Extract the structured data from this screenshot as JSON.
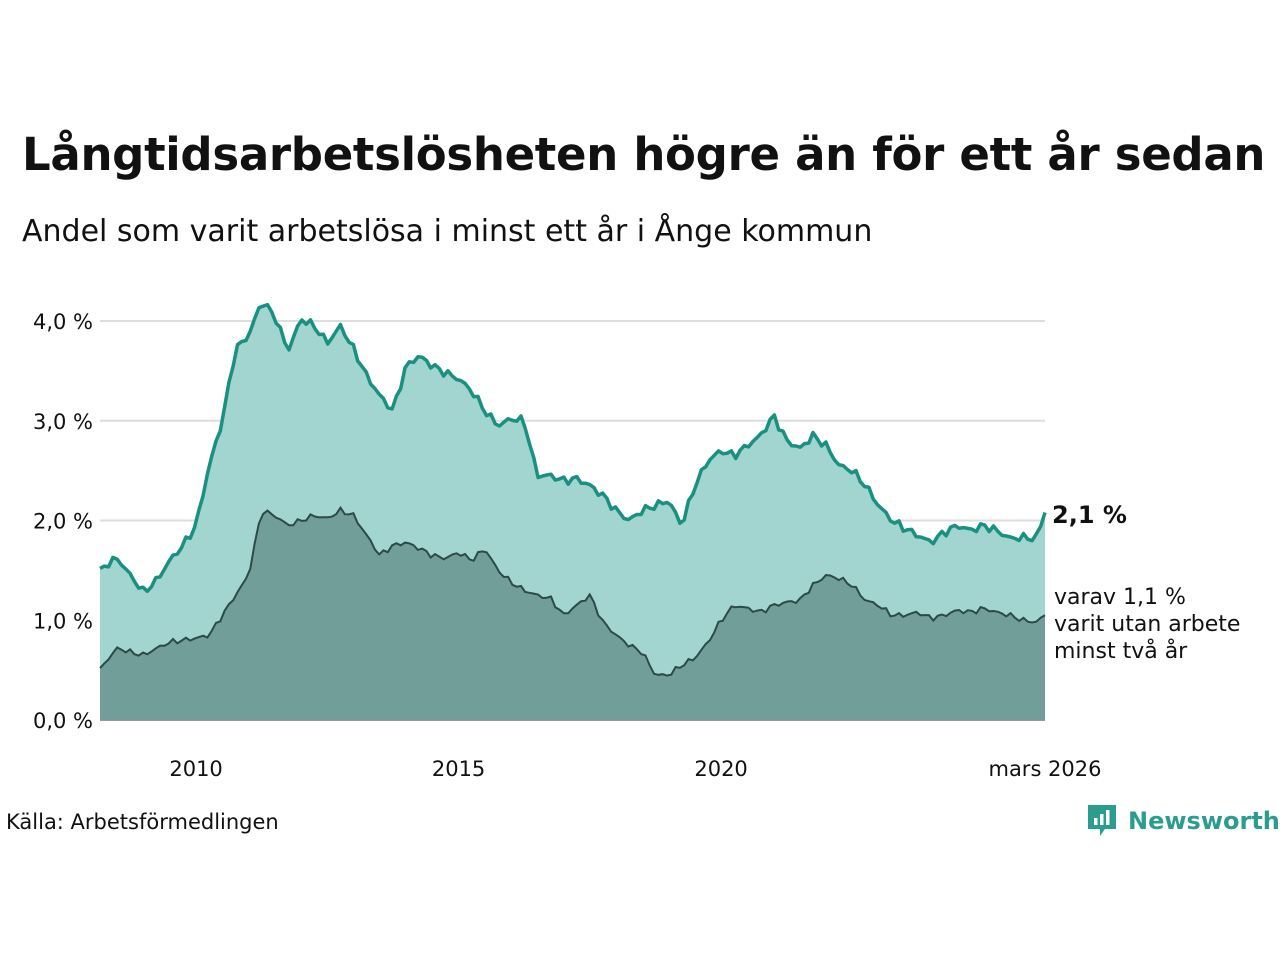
{
  "title": "Långtidsarbetslösheten högre än för ett år sedan",
  "subtitle": "Andel som varit arbetslösa i minst ett år i Ånge kommun",
  "source": "Källa: Arbetsförmedlingen",
  "brand": "Newsworthy",
  "colors": {
    "line1": "#1a9080",
    "area1": "#a3d5d0",
    "line2": "#2c4a47",
    "area2": "#719e99",
    "grid": "#dddddd"
  },
  "chart_data": {
    "type": "area",
    "title": "Långtidsarbetslösheten högre än för ett år sedan",
    "xlabel": "",
    "ylabel": "",
    "xlim": [
      2008.17,
      2026.17
    ],
    "ylim": [
      0,
      4.0
    ],
    "y_ticks": [
      0,
      1,
      2,
      3,
      4
    ],
    "y_tick_labels": [
      "0,0 %",
      "1,0 %",
      "2,0 %",
      "3,0 %",
      "4,0 %"
    ],
    "x_ticks": [
      2010,
      2015,
      2020,
      2026.17
    ],
    "x_tick_labels": [
      "2010",
      "2015",
      "2020",
      "mars 2026"
    ],
    "end_label": "2,1 %",
    "sub_label_lines": [
      "varav 1,1 %",
      "varit utan arbete",
      "minst två år"
    ],
    "series": [
      {
        "name": "Minst ett år",
        "x": [
          2008.17,
          2008.5,
          2008.75,
          2009.0,
          2009.25,
          2009.5,
          2009.75,
          2010.0,
          2010.25,
          2010.5,
          2010.75,
          2011.0,
          2011.25,
          2011.5,
          2011.75,
          2012.0,
          2012.25,
          2012.5,
          2012.75,
          2013.0,
          2013.25,
          2013.5,
          2013.75,
          2014.0,
          2014.25,
          2014.5,
          2014.75,
          2015.0,
          2015.25,
          2015.5,
          2015.75,
          2016.0,
          2016.25,
          2016.5,
          2016.75,
          2017.0,
          2017.25,
          2017.5,
          2017.75,
          2018.0,
          2018.25,
          2018.5,
          2018.75,
          2019.0,
          2019.25,
          2019.5,
          2019.75,
          2020.0,
          2020.25,
          2020.5,
          2020.75,
          2021.0,
          2021.25,
          2021.5,
          2021.75,
          2022.0,
          2022.25,
          2022.5,
          2022.75,
          2023.0,
          2023.25,
          2023.5,
          2023.75,
          2024.0,
          2024.25,
          2024.5,
          2024.75,
          2025.0,
          2025.25,
          2025.5,
          2025.75,
          2026.0,
          2026.17
        ],
        "values": [
          1.52,
          1.62,
          1.45,
          1.28,
          1.4,
          1.6,
          1.75,
          1.95,
          2.55,
          3.0,
          3.72,
          3.85,
          4.2,
          4.05,
          3.7,
          4.02,
          3.95,
          3.78,
          3.95,
          3.72,
          3.45,
          3.25,
          3.1,
          3.55,
          3.65,
          3.55,
          3.48,
          3.42,
          3.3,
          3.1,
          2.95,
          3.02,
          3.0,
          2.45,
          2.45,
          2.4,
          2.42,
          2.35,
          2.25,
          2.1,
          2.0,
          2.1,
          2.15,
          2.2,
          1.95,
          2.35,
          2.6,
          2.7,
          2.65,
          2.75,
          2.85,
          3.05,
          2.8,
          2.72,
          2.85,
          2.75,
          2.55,
          2.5,
          2.35,
          2.15,
          2.0,
          1.92,
          1.85,
          1.78,
          1.88,
          1.95,
          1.9,
          1.95,
          1.9,
          1.82,
          1.83,
          1.82,
          2.08
        ]
      },
      {
        "name": "Minst två år",
        "x": [
          2008.17,
          2008.5,
          2008.75,
          2009.0,
          2009.25,
          2009.5,
          2009.75,
          2010.0,
          2010.25,
          2010.5,
          2010.75,
          2011.0,
          2011.25,
          2011.5,
          2011.75,
          2012.0,
          2012.25,
          2012.5,
          2012.75,
          2013.0,
          2013.25,
          2013.5,
          2013.75,
          2014.0,
          2014.25,
          2014.5,
          2014.75,
          2015.0,
          2015.25,
          2015.5,
          2015.75,
          2016.0,
          2016.25,
          2016.5,
          2016.75,
          2017.0,
          2017.25,
          2017.5,
          2017.75,
          2018.0,
          2018.25,
          2018.5,
          2018.75,
          2019.0,
          2019.25,
          2019.5,
          2019.75,
          2020.0,
          2020.25,
          2020.5,
          2020.75,
          2021.0,
          2021.25,
          2021.5,
          2021.75,
          2022.0,
          2022.25,
          2022.5,
          2022.75,
          2023.0,
          2023.25,
          2023.5,
          2023.75,
          2024.0,
          2024.25,
          2024.5,
          2024.75,
          2025.0,
          2025.25,
          2025.5,
          2025.75,
          2026.0,
          2026.17
        ],
        "values": [
          0.52,
          0.72,
          0.68,
          0.65,
          0.72,
          0.78,
          0.8,
          0.82,
          0.85,
          1.05,
          1.25,
          1.45,
          2.1,
          2.05,
          1.95,
          2.0,
          2.05,
          2.02,
          2.1,
          2.05,
          1.85,
          1.65,
          1.75,
          1.78,
          1.72,
          1.65,
          1.62,
          1.68,
          1.6,
          1.72,
          1.5,
          1.38,
          1.3,
          1.25,
          1.22,
          1.05,
          1.15,
          1.25,
          0.98,
          0.85,
          0.75,
          0.68,
          0.45,
          0.45,
          0.55,
          0.62,
          0.78,
          1.0,
          1.15,
          1.12,
          1.08,
          1.15,
          1.18,
          1.2,
          1.35,
          1.45,
          1.42,
          1.35,
          1.2,
          1.15,
          1.05,
          1.05,
          1.08,
          1.02,
          1.05,
          1.1,
          1.08,
          1.12,
          1.08,
          1.05,
          1.0,
          0.98,
          1.05
        ]
      }
    ]
  }
}
